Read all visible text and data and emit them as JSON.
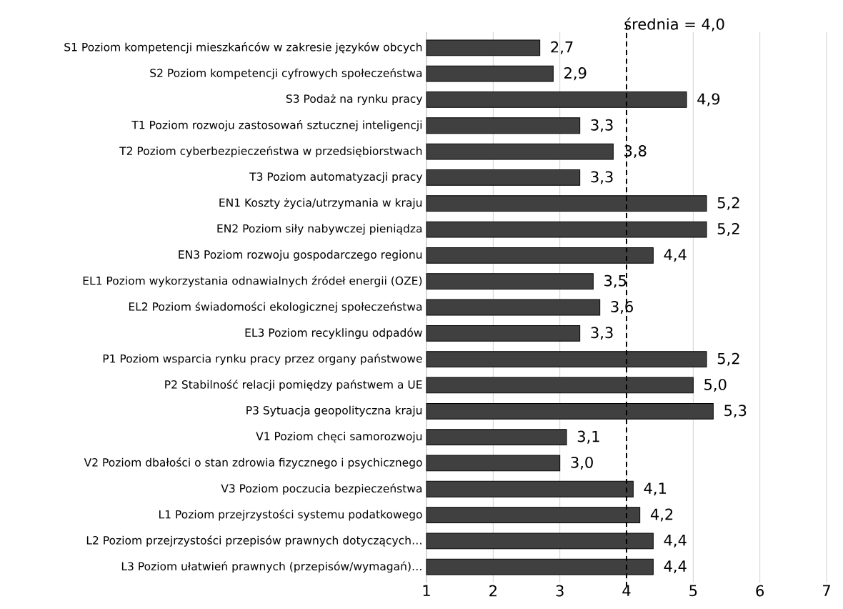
{
  "chart_data": {
    "type": "bar",
    "orientation": "horizontal",
    "categories": [
      "S1 Poziom kompetencji mieszkańców w zakresie języków obcych",
      "S2 Poziom kompetencji cyfrowych społeczeństwa",
      "S3 Podaż na rynku pracy",
      "T1 Poziom rozwoju zastosowań sztucznej inteligencji",
      "T2 Poziom cyberbezpieczeństwa w przedsiębiorstwach",
      "T3 Poziom automatyzacji pracy",
      "EN1 Koszty życia/utrzymania w kraju",
      "EN2 Poziom siły nabywczej pieniądza",
      "EN3 Poziom rozwoju gospodarczego regionu",
      "EL1 Poziom wykorzystania odnawialnych źródeł energii (OZE)",
      "EL2 Poziom świadomości ekologicznej społeczeństwa",
      "EL3 Poziom recyklingu odpadów",
      "P1 Poziom wsparcia rynku pracy przez organy państwowe",
      "P2 Stabilność relacji pomiędzy państwem a UE",
      "P3 Sytuacja geopolityczna kraju",
      "V1 Poziom chęci samorozwoju",
      "V2 Poziom dbałości o stan zdrowia fizycznego i psychicznego",
      "V3 Poziom poczucia bezpieczeństwa",
      "L1 Poziom przejrzystości systemu podatkowego",
      "L2 Poziom przejrzystości przepisów prawnych dotyczących…",
      "L3 Poziom ułatwień prawnych (przepisów/wymagań)…"
    ],
    "values": [
      2.7,
      2.9,
      4.9,
      3.3,
      3.8,
      3.3,
      5.2,
      5.2,
      4.4,
      3.5,
      3.6,
      3.3,
      5.2,
      5.0,
      5.3,
      3.1,
      3.0,
      4.1,
      4.2,
      4.4,
      4.4
    ],
    "value_labels": [
      "2,7",
      "2,9",
      "4,9",
      "3,3",
      "3,8",
      "3,3",
      "5,2",
      "5,2",
      "4,4",
      "3,5",
      "3,6",
      "3,3",
      "5,2",
      "5,0",
      "5,3",
      "3,1",
      "3,0",
      "4,1",
      "4,2",
      "4,4",
      "4,4"
    ],
    "color": "#404040",
    "xlim": [
      1,
      7
    ],
    "xticks": [
      1,
      2,
      3,
      4,
      5,
      6,
      7
    ],
    "grid": "x",
    "ref_lines": [
      {
        "axis": "x",
        "value": 4.0,
        "label": "średnia = 4,0",
        "color": "#000000",
        "line_style": "dashed"
      }
    ]
  }
}
